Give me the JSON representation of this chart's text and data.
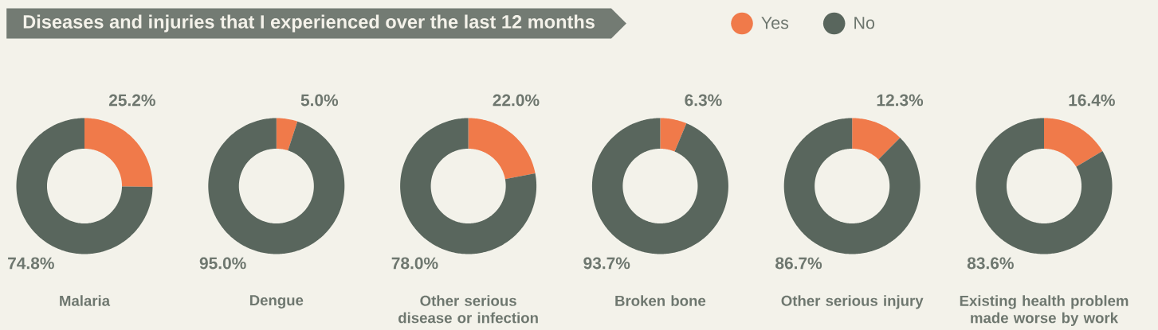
{
  "chart_data": [
    {
      "type": "donut",
      "title": "Malaria",
      "categories": [
        "Yes",
        "No"
      ],
      "values": [
        25.2,
        74.8
      ],
      "value_labels": [
        "25.2%",
        "74.8%"
      ],
      "colors": [
        "#f07a4a",
        "#59665d"
      ],
      "legend": "top",
      "annotations": [
        "Diseases and injuries that I experienced over the last 12 months"
      ]
    },
    {
      "type": "donut",
      "title": "Dengue",
      "categories": [
        null,
        null
      ],
      "values": [
        5.0,
        95.0
      ],
      "value_labels": [
        "5.0%",
        "95.0%"
      ],
      "colors": [
        "#f07a4a",
        "#59665d"
      ]
    },
    {
      "type": "donut",
      "title": "Other serious\ndisease or infection",
      "categories": [
        null,
        null
      ],
      "values": [
        22.0,
        78.0
      ],
      "value_labels": [
        "22.0%",
        "78.0%"
      ],
      "colors": [
        "#f07a4a",
        "#59665d"
      ]
    },
    {
      "type": "donut",
      "title": "Broken bone",
      "categories": [
        null,
        null
      ],
      "values": [
        6.3,
        93.7
      ],
      "value_labels": [
        "6.3%",
        "93.7%"
      ],
      "colors": [
        "#f07a4a",
        "#59665d"
      ]
    },
    {
      "type": "donut",
      "title": "Other serious injury",
      "categories": [
        null,
        null
      ],
      "values": [
        12.3,
        86.7
      ],
      "value_labels": [
        "12.3%",
        "86.7%"
      ],
      "colors": [
        "#f07a4a",
        "#59665d"
      ]
    },
    {
      "type": "donut",
      "title": "Existing health problem\nmade worse by work",
      "categories": [
        null,
        null
      ],
      "values": [
        16.4,
        83.6
      ],
      "value_labels": [
        "16.4%",
        "83.6%"
      ],
      "colors": [
        "#f07a4a",
        "#59665d"
      ]
    }
  ]
}
